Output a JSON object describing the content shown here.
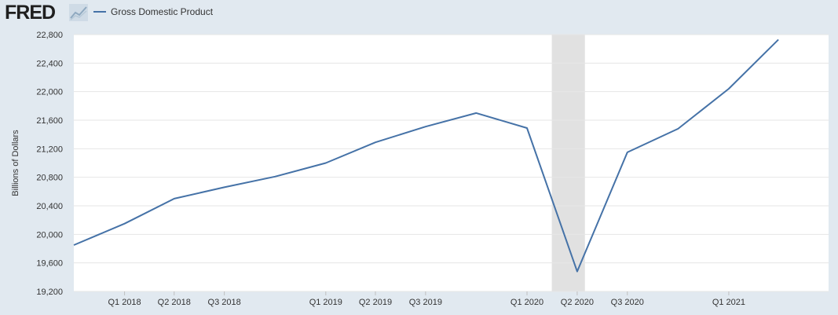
{
  "brand": {
    "logo_text": "FRED",
    "logo_mark": "fred-chart-mark-icon"
  },
  "legend": {
    "series_name": "Gross Domestic Product"
  },
  "colors": {
    "line": "#4572a7",
    "recession": "#e1e1e1",
    "plot_bg": "#ffffff",
    "frame_bg": "#e1e9f0",
    "grid": "#e6e6e6"
  },
  "chart_data": {
    "type": "line",
    "title": "",
    "xlabel": "",
    "ylabel": "Billions of Dollars",
    "ylim": [
      19200,
      22800
    ],
    "yticks": [
      19200,
      19600,
      20000,
      20400,
      20800,
      21200,
      21600,
      22000,
      22400,
      22800
    ],
    "ytick_labels": [
      "19,200",
      "19,600",
      "20,000",
      "20,400",
      "20,800",
      "21,200",
      "21,600",
      "22,000",
      "22,400",
      "22,800"
    ],
    "xlim": [
      "2017-10-01",
      "2021-07-01"
    ],
    "x_tick_labels": [
      "Q1 2018",
      "Q2 2018",
      "Q3 2018",
      "Q1 2019",
      "Q2 2019",
      "Q3 2019",
      "Q1 2020",
      "Q2 2020",
      "Q3 2020",
      "Q1 2021"
    ],
    "x_tick_dates": [
      "2018-01-01",
      "2018-04-01",
      "2018-07-01",
      "2019-01-01",
      "2019-04-01",
      "2019-07-01",
      "2020-01-01",
      "2020-04-01",
      "2020-07-01",
      "2021-01-01"
    ],
    "grid": true,
    "series": [
      {
        "name": "Gross Domestic Product",
        "points": [
          {
            "x": "2017-10-01",
            "y": 19850
          },
          {
            "x": "2018-01-01",
            "y": 20150
          },
          {
            "x": "2018-04-01",
            "y": 20500
          },
          {
            "x": "2018-07-01",
            "y": 20660
          },
          {
            "x": "2018-10-01",
            "y": 20810
          },
          {
            "x": "2019-01-01",
            "y": 21000
          },
          {
            "x": "2019-04-01",
            "y": 21290
          },
          {
            "x": "2019-07-01",
            "y": 21510
          },
          {
            "x": "2019-10-01",
            "y": 21700
          },
          {
            "x": "2020-01-01",
            "y": 21490
          },
          {
            "x": "2020-04-01",
            "y": 19480
          },
          {
            "x": "2020-07-01",
            "y": 21150
          },
          {
            "x": "2020-10-01",
            "y": 21480
          },
          {
            "x": "2021-01-01",
            "y": 22040
          },
          {
            "x": "2021-04-01",
            "y": 22730
          }
        ]
      }
    ],
    "shaded_regions": [
      {
        "label": "recession",
        "from": "2020-02-15",
        "to": "2020-04-15"
      }
    ]
  }
}
